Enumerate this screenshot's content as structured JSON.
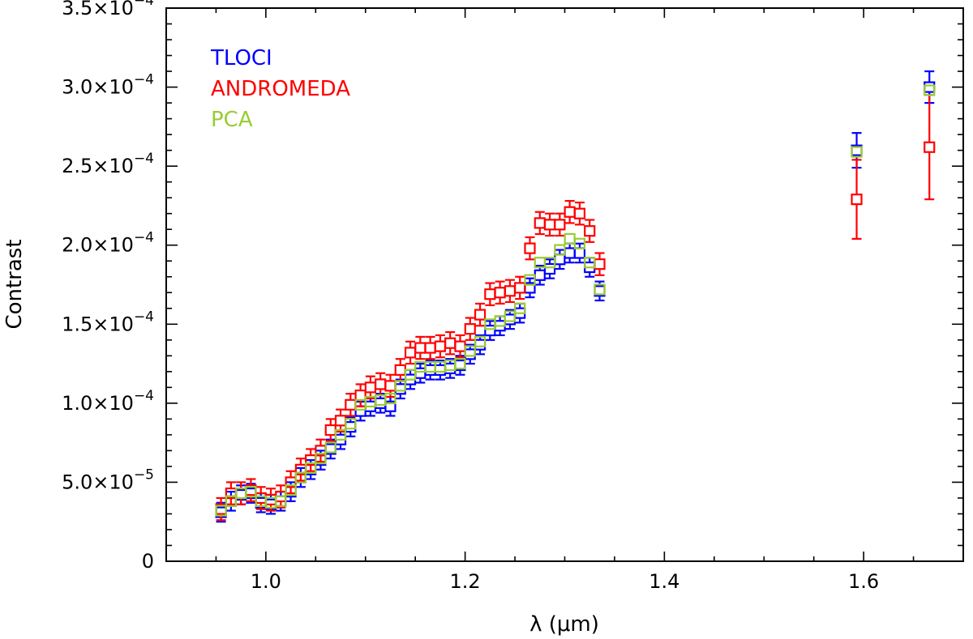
{
  "chart_data": {
    "type": "scatter",
    "title": "",
    "xlabel": "λ (μm)",
    "ylabel": "Contrast",
    "xlim": [
      0.9,
      1.7
    ],
    "ylim": [
      0,
      0.00035
    ],
    "x_ticks": [
      {
        "value": 1.0,
        "label": "1.0"
      },
      {
        "value": 1.2,
        "label": "1.2"
      },
      {
        "value": 1.4,
        "label": "1.4"
      },
      {
        "value": 1.6,
        "label": "1.6"
      }
    ],
    "y_ticks": [
      {
        "value": 0,
        "mant": "0",
        "exp": ""
      },
      {
        "value": 5e-05,
        "mant": "5.0×10",
        "exp": "−5"
      },
      {
        "value": 0.0001,
        "mant": "1.0×10",
        "exp": "−4"
      },
      {
        "value": 0.00015,
        "mant": "1.5×10",
        "exp": "−4"
      },
      {
        "value": 0.0002,
        "mant": "2.0×10",
        "exp": "−4"
      },
      {
        "value": 0.00025,
        "mant": "2.5×10",
        "exp": "−4"
      },
      {
        "value": 0.0003,
        "mant": "3.0×10",
        "exp": "−4"
      },
      {
        "value": 0.00035,
        "mant": "3.5×10",
        "exp": "−4"
      }
    ],
    "legend_position": "top-left",
    "x": [
      0.955,
      0.965,
      0.975,
      0.985,
      0.995,
      1.005,
      1.015,
      1.025,
      1.035,
      1.045,
      1.055,
      1.065,
      1.075,
      1.085,
      1.095,
      1.105,
      1.115,
      1.125,
      1.135,
      1.145,
      1.155,
      1.165,
      1.175,
      1.185,
      1.195,
      1.205,
      1.215,
      1.225,
      1.235,
      1.245,
      1.255,
      1.265,
      1.275,
      1.285,
      1.295,
      1.305,
      1.315,
      1.325,
      1.335,
      1.593,
      1.666
    ],
    "series": [
      {
        "name": "TLOCI",
        "color": "#0000ff",
        "values": [
          3.1e-05,
          3.8e-05,
          4.2e-05,
          4.3e-05,
          3.7e-05,
          3.6e-05,
          3.8e-05,
          4.4e-05,
          5.3e-05,
          5.8e-05,
          6.4e-05,
          7.1e-05,
          7.7e-05,
          8.5e-05,
          9.5e-05,
          9.8e-05,
          0.0001,
          9.8e-05,
          0.000109,
          0.000115,
          0.000119,
          0.000121,
          0.000121,
          0.000122,
          0.000124,
          0.000131,
          0.000137,
          0.000146,
          0.000149,
          0.000153,
          0.000157,
          0.000173,
          0.000181,
          0.000185,
          0.000191,
          0.000195,
          0.000195,
          0.000186,
          0.000171,
          0.00026,
          0.0003
        ],
        "errors": [
          6e-06,
          6e-06,
          6e-06,
          6e-06,
          6e-06,
          6e-06,
          6e-06,
          6e-06,
          6e-06,
          6e-06,
          6e-06,
          6e-06,
          6e-06,
          6e-06,
          6e-06,
          6e-06,
          6e-06,
          6e-06,
          6e-06,
          6e-06,
          6e-06,
          6e-06,
          6e-06,
          6e-06,
          6e-06,
          6e-06,
          6e-06,
          6e-06,
          6e-06,
          6e-06,
          6e-06,
          6e-06,
          6e-06,
          6e-06,
          6e-06,
          6e-06,
          6e-06,
          6e-06,
          6e-06,
          1.1e-05,
          1e-05
        ]
      },
      {
        "name": "ANDROMEDA",
        "color": "#ff0000",
        "values": [
          3.3e-05,
          4.3e-05,
          4.3e-05,
          4.5e-05,
          4e-05,
          3.9e-05,
          4.1e-05,
          5e-05,
          5.8e-05,
          6.4e-05,
          7e-05,
          8.3e-05,
          8.9e-05,
          9.9e-05,
          0.000105,
          0.00011,
          0.000112,
          0.000111,
          0.000121,
          0.000132,
          0.000135,
          0.000135,
          0.000136,
          0.000138,
          0.000136,
          0.000147,
          0.000156,
          0.000169,
          0.00017,
          0.000171,
          0.000173,
          0.000198,
          0.000214,
          0.000213,
          0.000213,
          0.000221,
          0.00022,
          0.000209,
          0.000188,
          0.000229,
          0.000262
        ],
        "errors": [
          7e-06,
          7e-06,
          7e-06,
          7e-06,
          7e-06,
          7e-06,
          7e-06,
          7e-06,
          7e-06,
          7e-06,
          7e-06,
          7e-06,
          7e-06,
          7e-06,
          7e-06,
          7e-06,
          7e-06,
          7e-06,
          7e-06,
          7e-06,
          7e-06,
          7e-06,
          7e-06,
          7e-06,
          7e-06,
          7e-06,
          7e-06,
          7e-06,
          7e-06,
          7e-06,
          7e-06,
          7e-06,
          7e-06,
          7e-06,
          7e-06,
          7e-06,
          7e-06,
          7e-06,
          7e-06,
          2.5e-05,
          3.3e-05
        ]
      },
      {
        "name": "PCA",
        "color": "#99cc33",
        "values": [
          3.2e-05,
          3.8e-05,
          4.3e-05,
          4.4e-05,
          3.8e-05,
          3.7e-05,
          3.8e-05,
          4.5e-05,
          5.3e-05,
          5.9e-05,
          6.5e-05,
          7.2e-05,
          8e-05,
          8.7e-05,
          9.9e-05,
          0.000101,
          0.000102,
          0.000103,
          0.000111,
          0.000118,
          0.000123,
          0.000123,
          0.000123,
          0.000124,
          0.000125,
          0.000133,
          0.000139,
          0.00015,
          0.000152,
          0.000155,
          0.00016,
          0.000178,
          0.000189,
          0.000189,
          0.000197,
          0.000204,
          0.000201,
          0.000189,
          0.000172,
          0.000259,
          0.000298
        ],
        "errors": []
      }
    ]
  }
}
